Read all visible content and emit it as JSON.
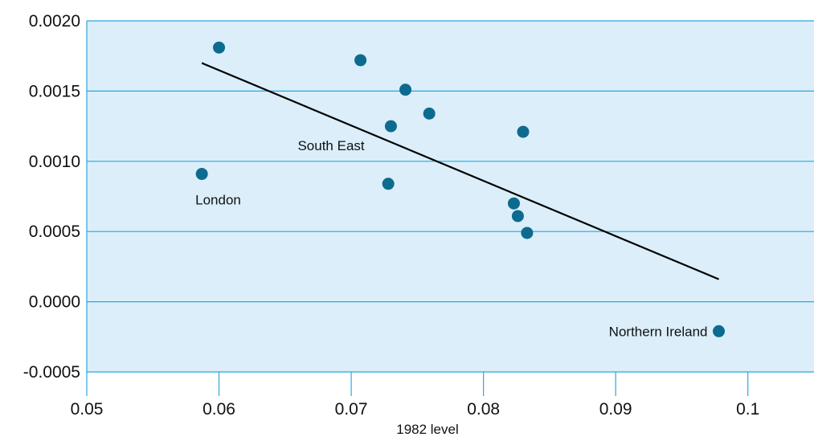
{
  "chart_data": {
    "type": "scatter",
    "title": "",
    "xlabel": "1982 level",
    "ylabel": "",
    "xlim": [
      0.05,
      0.105
    ],
    "ylim": [
      -0.0005,
      0.002
    ],
    "x_ticks": [
      "0.05",
      "0.06",
      "0.07",
      "0.08",
      "0.09",
      "0.1"
    ],
    "y_ticks": [
      "0.0020",
      "0.0015",
      "0.0010",
      "0.0005",
      "0.0000",
      "-0.0005"
    ],
    "grid": "horizontal",
    "colors": {
      "plot_background": "#dbeef9",
      "grid": "#29a8e0",
      "point": "#0d6b8f",
      "trend_line": "#000000"
    },
    "points": [
      {
        "x": 0.0587,
        "y": 0.00091,
        "label": "London"
      },
      {
        "x": 0.06,
        "y": 0.00181,
        "label": ""
      },
      {
        "x": 0.0707,
        "y": 0.00172,
        "label": ""
      },
      {
        "x": 0.0741,
        "y": 0.00151,
        "label": ""
      },
      {
        "x": 0.073,
        "y": 0.00125,
        "label": "South East"
      },
      {
        "x": 0.0759,
        "y": 0.00134,
        "label": ""
      },
      {
        "x": 0.0728,
        "y": 0.00084,
        "label": ""
      },
      {
        "x": 0.083,
        "y": 0.00121,
        "label": ""
      },
      {
        "x": 0.0823,
        "y": 0.0007,
        "label": ""
      },
      {
        "x": 0.0826,
        "y": 0.00061,
        "label": ""
      },
      {
        "x": 0.0833,
        "y": 0.00049,
        "label": ""
      },
      {
        "x": 0.0978,
        "y": -0.00021,
        "label": "Northern Ireland"
      }
    ],
    "trend_line": {
      "x": [
        0.0587,
        0.0978
      ],
      "y": [
        0.0017,
        0.00016
      ]
    }
  }
}
